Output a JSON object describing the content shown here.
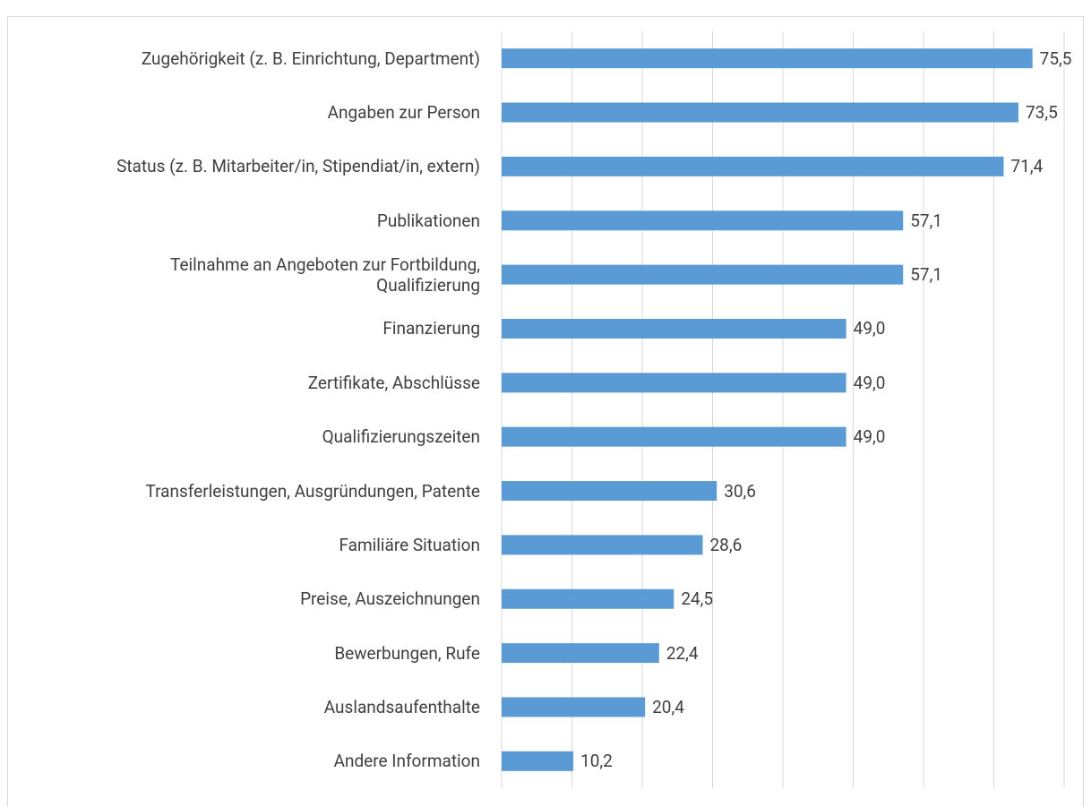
{
  "chart_data": {
    "type": "bar",
    "orientation": "horizontal",
    "categories": [
      "Zugehörigkeit (z. B. Einrichtung, Department)",
      "Angaben zur Person",
      "Status (z. B. Mitarbeiter/in, Stipendiat/in, extern)",
      "Publikationen",
      "Teilnahme an Angeboten zur Fortbildung,\nQualifizierung",
      "Finanzierung",
      "Zertifikate, Abschlüsse",
      "Qualifizierungszeiten",
      "Transferleistungen, Ausgründungen, Patente",
      "Familiäre Situation",
      "Preise, Auszeichnungen",
      "Bewerbungen, Rufe",
      "Auslandsaufenthalte",
      "Andere Information"
    ],
    "values": [
      75.5,
      73.5,
      71.4,
      57.1,
      57.1,
      49.0,
      49.0,
      49.0,
      30.6,
      28.6,
      24.5,
      22.4,
      20.4,
      10.2
    ],
    "value_labels": [
      "75,5",
      "73,5",
      "71,4",
      "57,1",
      "57,1",
      "49,0",
      "49,0",
      "49,0",
      "30,6",
      "28,6",
      "24,5",
      "22,4",
      "20,4",
      "10,2"
    ],
    "color": "#5b9bd5",
    "xlim": [
      0,
      80
    ],
    "xticks": [
      0,
      10,
      20,
      30,
      40,
      50,
      60,
      70,
      80
    ],
    "grid": true
  }
}
